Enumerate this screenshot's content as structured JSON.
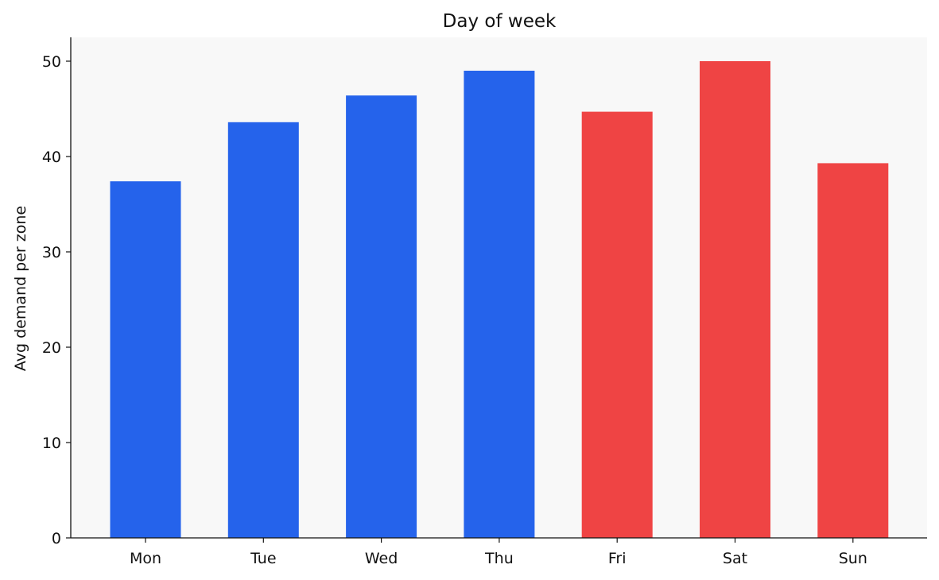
{
  "chart_data": {
    "type": "bar",
    "title": "Day of week",
    "xlabel": "",
    "ylabel": "Avg demand per zone",
    "categories": [
      "Mon",
      "Tue",
      "Wed",
      "Thu",
      "Fri",
      "Sat",
      "Sun"
    ],
    "values": [
      37.4,
      43.6,
      46.4,
      49.0,
      44.7,
      50.0,
      39.3
    ],
    "bar_colors": [
      "#2563eb",
      "#2563eb",
      "#2563eb",
      "#2563eb",
      "#ef4444",
      "#ef4444",
      "#ef4444"
    ],
    "ylim": [
      0,
      52.5
    ],
    "yticks": [
      0,
      10,
      20,
      30,
      40,
      50
    ],
    "grid": false,
    "plot_background": "#f8f8f8"
  }
}
